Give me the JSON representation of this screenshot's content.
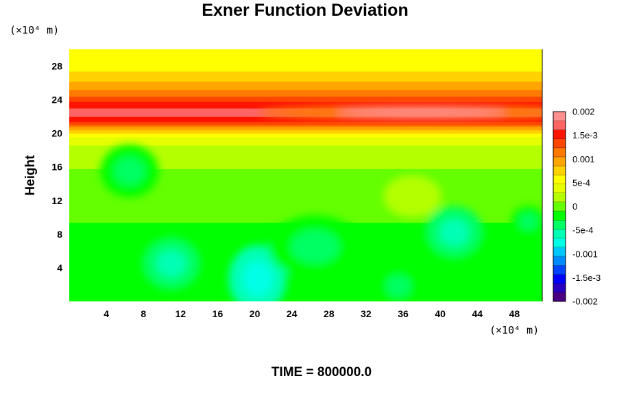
{
  "chart_data": {
    "type": "heatmap",
    "title": "Exner Function Deviation",
    "ylabel": "Height",
    "xunit": "(×10⁴ m)",
    "yunit": "(×10⁴ m)",
    "footer": "TIME = 800000.0",
    "xlim": [
      0,
      51
    ],
    "ylim": [
      0,
      30
    ],
    "x_ticks": [
      4,
      8,
      12,
      16,
      20,
      24,
      28,
      32,
      36,
      40,
      44,
      48
    ],
    "y_ticks": [
      4,
      8,
      12,
      16,
      20,
      24,
      28
    ],
    "colorbar": {
      "range": [
        -0.002,
        0.002
      ],
      "tick_values": [
        0.002,
        0.0015,
        0.001,
        0.0005,
        0,
        -0.0005,
        -0.001,
        -0.0015,
        -0.002
      ],
      "tick_labels": [
        "0.002",
        "1.5e-3",
        "0.001",
        "5e-4",
        "0",
        "-5e-4",
        "-0.001",
        "-1.5e-3",
        "-0.002"
      ],
      "colors": [
        "#4b0082",
        "#2a00c0",
        "#0000ff",
        "#0044ff",
        "#008cff",
        "#00c8ff",
        "#00ffe6",
        "#00ffb4",
        "#00ff64",
        "#00ff00",
        "#64ff00",
        "#b4ff00",
        "#e6ff00",
        "#ffff00",
        "#ffd200",
        "#ffa500",
        "#ff7800",
        "#ff4600",
        "#ff1400",
        "#ff6464",
        "#ff9090"
      ]
    },
    "vertical_profile": {
      "height": [
        0,
        4,
        8,
        12,
        16,
        18,
        19.5,
        20.5,
        21.5,
        22.5,
        23.5,
        24.5,
        25.5,
        26.5,
        27.5,
        28.5,
        30
      ],
      "value": [
        -0.00025,
        -0.00018,
        -0.00012,
        -5e-05,
        0.0001,
        0.0002,
        0.0004,
        0.0009,
        0.0015,
        0.0017,
        0.0015,
        0.0012,
        0.001,
        0.0008,
        0.00065,
        0.00055,
        0.0005
      ]
    },
    "features": [
      {
        "x": 20.3,
        "y": 2.7,
        "value": -0.00085,
        "rx": 2.5,
        "ry": 3.2
      },
      {
        "x": 41.5,
        "y": 8.2,
        "value": -0.0006,
        "rx": 2.5,
        "ry": 2.5
      },
      {
        "x": 11,
        "y": 4.5,
        "value": -0.0005,
        "rx": 2.5,
        "ry": 2.5
      },
      {
        "x": 26.5,
        "y": 6.5,
        "value": -0.0004,
        "rx": 4,
        "ry": 3
      },
      {
        "x": 35.5,
        "y": 1.8,
        "value": -0.0004,
        "rx": 2,
        "ry": 2
      },
      {
        "x": 6.5,
        "y": 15.5,
        "value": -0.0003,
        "rx": 2.5,
        "ry": 2.5
      },
      {
        "x": 49.5,
        "y": 9.5,
        "value": -0.0004,
        "rx": 1.5,
        "ry": 1.5
      },
      {
        "x": 37,
        "y": 12.5,
        "value": 0.00025,
        "rx": 2.5,
        "ry": 2
      },
      {
        "x": 38,
        "y": 22.5,
        "value": 0.002,
        "rx": 14,
        "ry": 0.7
      }
    ]
  }
}
